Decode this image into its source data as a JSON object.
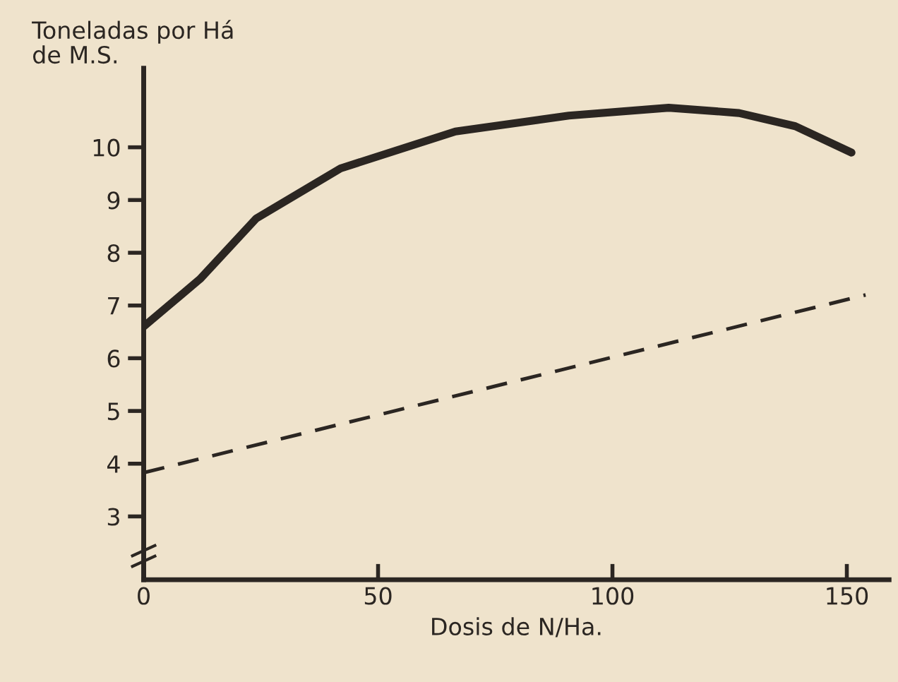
{
  "chart_data": {
    "type": "line",
    "ylabel": "Toneladas por Há\nde M.S.",
    "xlabel": "Dosis de N/Ha.",
    "xlim": [
      0,
      159
    ],
    "xticks": [
      0,
      50,
      100,
      150
    ],
    "ylim": [
      1.8,
      11.5
    ],
    "yticks": [
      3,
      4,
      5,
      6,
      7,
      8,
      9,
      10
    ],
    "grid": false,
    "legend": false,
    "marker": "none",
    "series": [
      {
        "color": "#2b2622",
        "line_style": "solid",
        "x": [
          0,
          12,
          24,
          42,
          66.5,
          90.7,
          112,
          127,
          139,
          151
        ],
        "values": [
          6.6,
          7.5,
          8.65,
          9.6,
          10.3,
          10.6,
          10.75,
          10.65,
          10.4,
          9.9
        ]
      },
      {
        "color": "#2b2622",
        "line_style": "dashed",
        "x": [
          0,
          154
        ],
        "values": [
          3.83,
          7.2
        ]
      }
    ]
  }
}
